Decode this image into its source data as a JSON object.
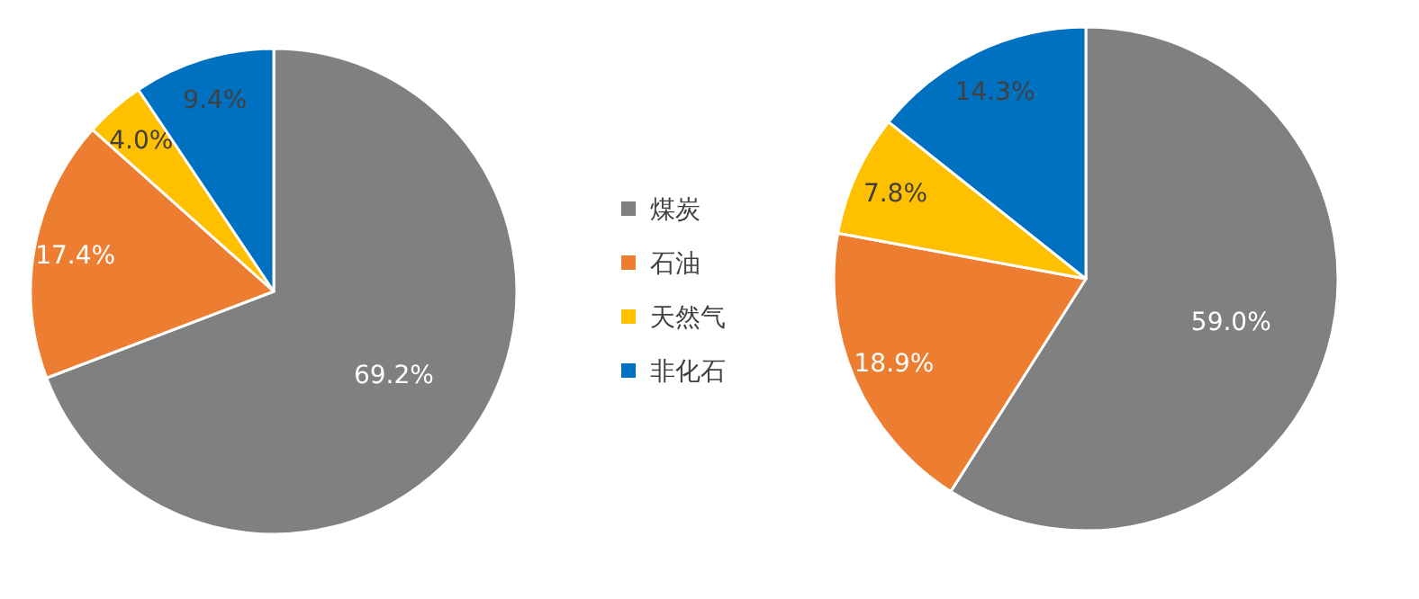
{
  "chart_data": [
    {
      "type": "pie",
      "categories": [
        "煤炭",
        "石油",
        "天然气",
        "非化石"
      ],
      "values": [
        69.2,
        17.4,
        4.0,
        9.4
      ],
      "colors": [
        "#808080",
        "#ed7d31",
        "#ffc000",
        "#0070c0"
      ],
      "value_labels": [
        "69.2%",
        "17.4%",
        "4.0%",
        "9.4%"
      ],
      "legend": "right"
    },
    {
      "type": "pie",
      "categories": [
        null,
        null,
        null,
        null
      ],
      "values": [
        59.0,
        18.9,
        7.8,
        14.3
      ],
      "colors": [
        "#808080",
        "#ed7d31",
        "#ffc000",
        "#0070c0"
      ],
      "value_labels": [
        "59.0%",
        "18.9%",
        "7.8%",
        "14.3%"
      ]
    }
  ]
}
